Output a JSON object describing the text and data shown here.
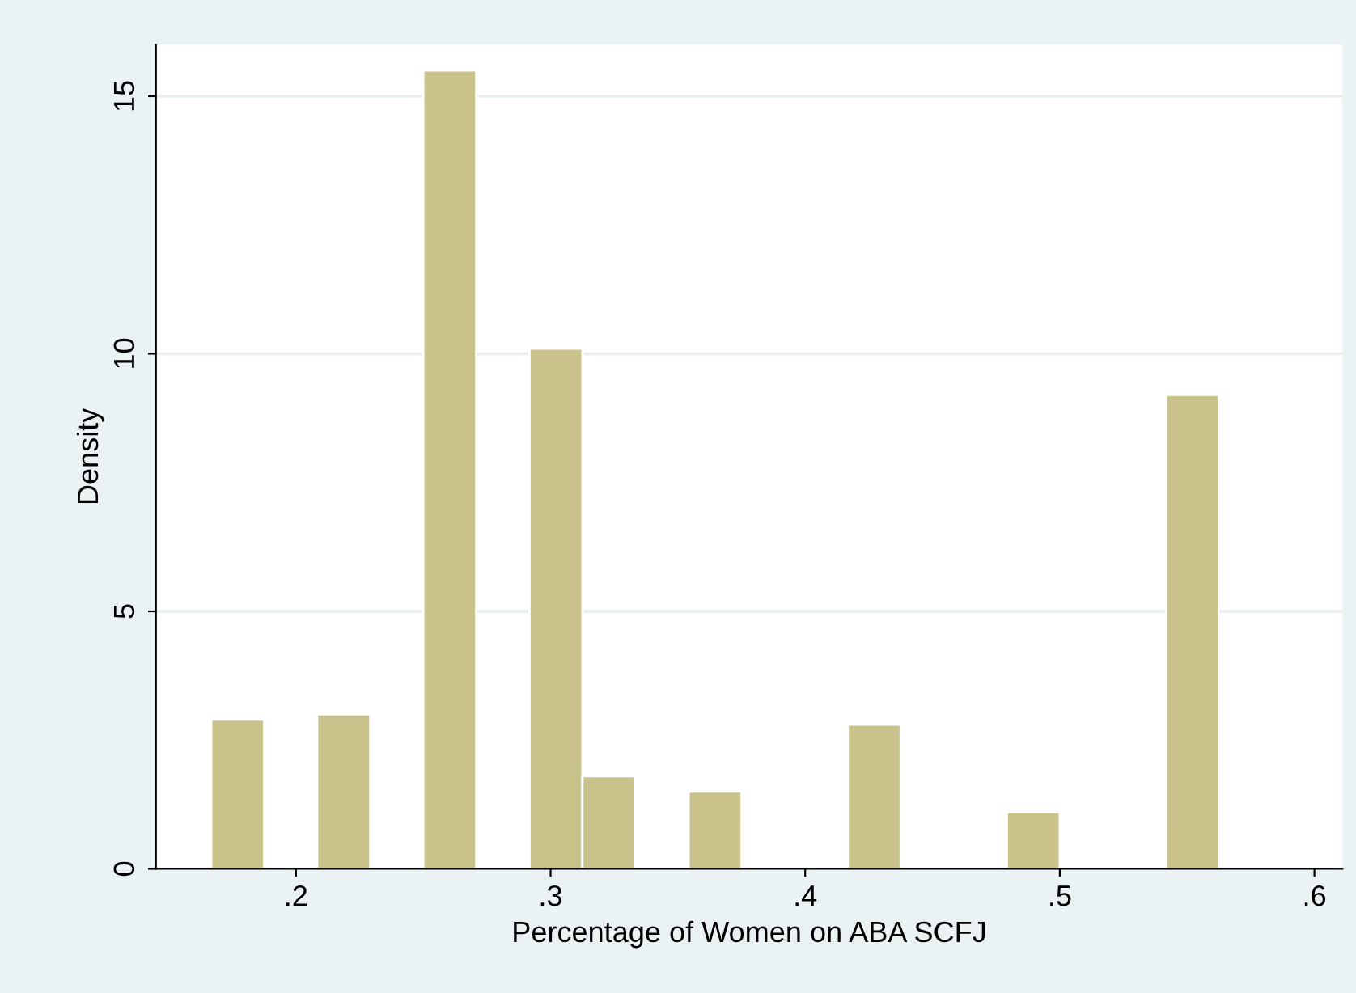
{
  "chart_data": {
    "type": "histogram",
    "xlabel": "Percentage of Women on ABA SCFJ",
    "ylabel": "Density",
    "bins": [
      0.1667,
      0.1875,
      0.2083,
      0.2292,
      0.25,
      0.2708,
      0.2917,
      0.3125,
      0.3333,
      0.3542,
      0.375,
      0.3958,
      0.4167,
      0.4375,
      0.4583,
      0.4792,
      0.5,
      0.5208,
      0.5417,
      0.5625
    ],
    "values": [
      2.9,
      0,
      3.0,
      0,
      15.5,
      0,
      10.1,
      1.8,
      0,
      1.5,
      0,
      0,
      2.8,
      0,
      0,
      1.1,
      0,
      0,
      9.2
    ],
    "color": "#c9c28b",
    "xlim": [
      0.145,
      0.611
    ],
    "ylim": [
      0,
      16
    ],
    "xticks": [
      {
        "value": 0.2,
        "label": ".2"
      },
      {
        "value": 0.3,
        "label": ".3"
      },
      {
        "value": 0.4,
        "label": ".4"
      },
      {
        "value": 0.5,
        "label": ".5"
      },
      {
        "value": 0.6,
        "label": ".6"
      }
    ],
    "yticks": [
      0,
      5,
      10,
      15
    ],
    "grid": "y",
    "legend": false
  }
}
